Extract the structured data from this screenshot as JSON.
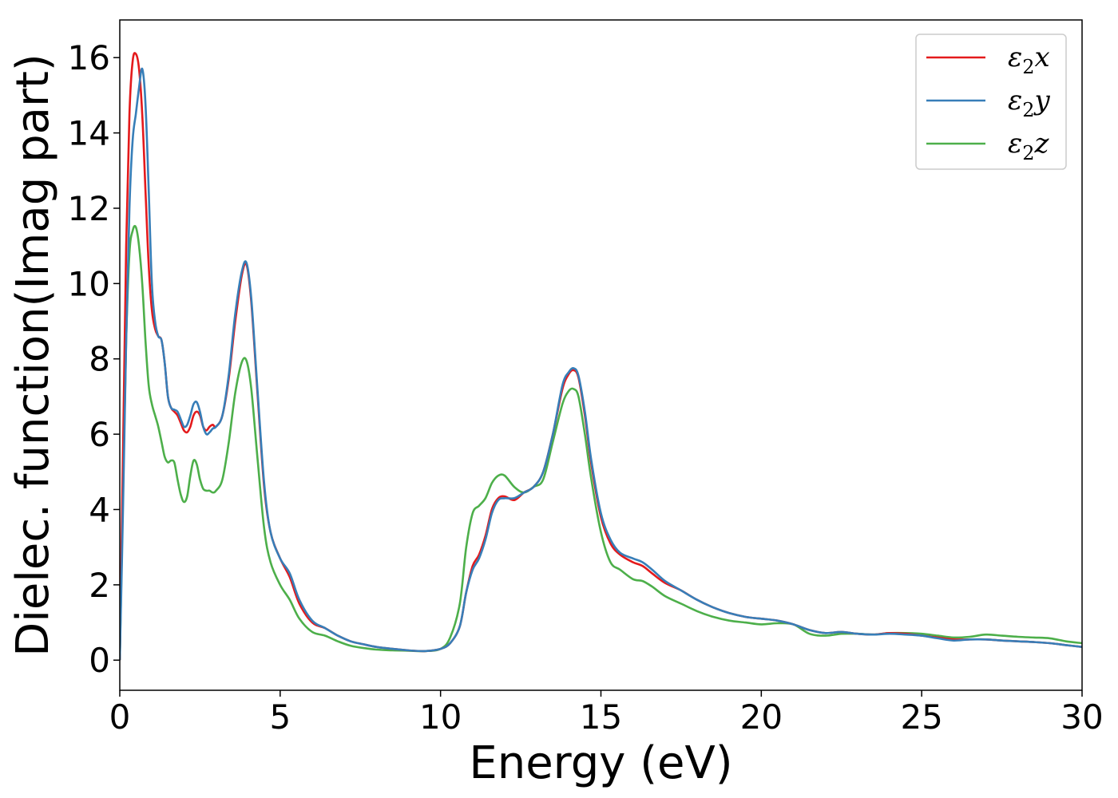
{
  "chart_data": {
    "type": "line",
    "title": "",
    "xlabel": "Energy (eV)",
    "ylabel": "Dielec. function(Imag part)",
    "xlim": [
      0,
      30
    ],
    "ylim": [
      -0.8,
      17
    ],
    "xticks": [
      0,
      5,
      10,
      15,
      20,
      25,
      30
    ],
    "yticks": [
      0,
      2,
      4,
      6,
      8,
      10,
      12,
      14,
      16
    ],
    "grid": false,
    "legend_position": "top-right",
    "series": [
      {
        "name": "ε2x",
        "legend_base": "ε",
        "legend_sub": "2",
        "legend_suffix": "x",
        "color": "#e41a1c",
        "x": [
          0,
          0.1,
          0.2,
          0.3,
          0.4,
          0.5,
          0.6,
          0.7,
          0.8,
          0.9,
          1.0,
          1.1,
          1.2,
          1.3,
          1.4,
          1.5,
          1.6,
          1.7,
          1.8,
          1.9,
          2.0,
          2.1,
          2.2,
          2.3,
          2.4,
          2.5,
          2.6,
          2.7,
          2.8,
          2.9,
          3.0,
          3.2,
          3.4,
          3.6,
          3.8,
          3.95,
          4.1,
          4.3,
          4.5,
          4.7,
          5.0,
          5.3,
          5.6,
          6.0,
          6.4,
          6.8,
          7.2,
          7.6,
          8.0,
          8.5,
          9.0,
          9.5,
          10.0,
          10.3,
          10.6,
          10.8,
          11.0,
          11.2,
          11.4,
          11.6,
          11.8,
          12.0,
          12.3,
          12.6,
          12.9,
          13.2,
          13.5,
          13.8,
          14.0,
          14.15,
          14.3,
          14.5,
          14.7,
          15.0,
          15.3,
          15.6,
          16.0,
          16.3,
          16.6,
          17.0,
          17.5,
          18.0,
          18.5,
          19.0,
          19.5,
          20.0,
          20.5,
          21.0,
          21.5,
          22.0,
          22.5,
          23.0,
          23.5,
          24.0,
          24.5,
          25.0,
          25.5,
          26.0,
          26.5,
          27.0,
          27.5,
          28.0,
          28.5,
          29.0,
          29.5,
          30.0
        ],
        "y": [
          0,
          5.5,
          11.0,
          14.5,
          15.9,
          16.1,
          15.7,
          14.5,
          12.5,
          10.5,
          9.3,
          8.8,
          8.6,
          8.5,
          7.9,
          7.0,
          6.7,
          6.6,
          6.5,
          6.3,
          6.1,
          6.05,
          6.2,
          6.5,
          6.6,
          6.5,
          6.2,
          6.1,
          6.2,
          6.25,
          6.2,
          6.5,
          7.5,
          9.0,
          10.2,
          10.5,
          9.5,
          7.0,
          4.6,
          3.4,
          2.7,
          2.2,
          1.5,
          1.0,
          0.85,
          0.65,
          0.5,
          0.42,
          0.35,
          0.3,
          0.26,
          0.24,
          0.3,
          0.45,
          0.9,
          1.8,
          2.5,
          2.8,
          3.3,
          4.0,
          4.3,
          4.35,
          4.25,
          4.45,
          4.6,
          5.0,
          6.0,
          7.2,
          7.6,
          7.7,
          7.5,
          6.5,
          5.2,
          3.8,
          3.1,
          2.8,
          2.6,
          2.5,
          2.3,
          2.05,
          1.85,
          1.6,
          1.4,
          1.25,
          1.15,
          1.1,
          1.05,
          0.95,
          0.8,
          0.72,
          0.75,
          0.7,
          0.68,
          0.72,
          0.7,
          0.65,
          0.6,
          0.55,
          0.55,
          0.55,
          0.52,
          0.5,
          0.48,
          0.45,
          0.4,
          0.35
        ]
      },
      {
        "name": "ε2y",
        "legend_base": "ε",
        "legend_sub": "2",
        "legend_suffix": "y",
        "color": "#377eb8",
        "x": [
          0,
          0.1,
          0.2,
          0.3,
          0.4,
          0.5,
          0.6,
          0.7,
          0.8,
          0.9,
          1.0,
          1.1,
          1.2,
          1.3,
          1.4,
          1.5,
          1.6,
          1.7,
          1.8,
          1.9,
          2.0,
          2.1,
          2.2,
          2.3,
          2.4,
          2.5,
          2.6,
          2.7,
          2.8,
          2.9,
          3.0,
          3.2,
          3.4,
          3.6,
          3.8,
          3.95,
          4.1,
          4.3,
          4.5,
          4.7,
          5.0,
          5.3,
          5.6,
          6.0,
          6.4,
          6.8,
          7.2,
          7.6,
          8.0,
          8.5,
          9.0,
          9.5,
          10.0,
          10.3,
          10.6,
          10.8,
          11.0,
          11.2,
          11.4,
          11.6,
          11.8,
          12.0,
          12.3,
          12.6,
          12.9,
          13.2,
          13.5,
          13.8,
          14.0,
          14.15,
          14.3,
          14.5,
          14.7,
          15.0,
          15.3,
          15.6,
          16.0,
          16.3,
          16.6,
          17.0,
          17.5,
          18.0,
          18.5,
          19.0,
          19.5,
          20.0,
          20.5,
          21.0,
          21.5,
          22.0,
          22.5,
          23.0,
          23.5,
          24.0,
          24.5,
          25.0,
          25.5,
          26.0,
          26.5,
          27.0,
          27.5,
          28.0,
          28.5,
          29.0,
          29.5,
          30.0
        ],
        "y": [
          0,
          4.0,
          8.5,
          12.0,
          13.8,
          14.5,
          15.2,
          15.7,
          14.8,
          12.5,
          10.0,
          9.0,
          8.6,
          8.5,
          7.9,
          7.0,
          6.7,
          6.65,
          6.6,
          6.4,
          6.2,
          6.25,
          6.5,
          6.8,
          6.85,
          6.6,
          6.2,
          6.0,
          6.05,
          6.15,
          6.2,
          6.5,
          7.6,
          9.2,
          10.3,
          10.55,
          9.6,
          7.1,
          4.7,
          3.4,
          2.7,
          2.3,
          1.6,
          1.05,
          0.85,
          0.65,
          0.5,
          0.42,
          0.35,
          0.3,
          0.26,
          0.24,
          0.3,
          0.45,
          0.9,
          1.8,
          2.4,
          2.7,
          3.2,
          3.9,
          4.25,
          4.3,
          4.3,
          4.45,
          4.6,
          5.0,
          6.0,
          7.3,
          7.65,
          7.75,
          7.55,
          6.6,
          5.3,
          3.9,
          3.2,
          2.85,
          2.7,
          2.6,
          2.4,
          2.1,
          1.85,
          1.6,
          1.4,
          1.25,
          1.15,
          1.1,
          1.05,
          0.95,
          0.8,
          0.72,
          0.75,
          0.7,
          0.68,
          0.7,
          0.68,
          0.65,
          0.58,
          0.52,
          0.55,
          0.55,
          0.52,
          0.5,
          0.48,
          0.45,
          0.4,
          0.35
        ]
      },
      {
        "name": "ε2z",
        "legend_base": "ε",
        "legend_sub": "2",
        "legend_suffix": "z",
        "color": "#4daf4a",
        "x": [
          0,
          0.1,
          0.2,
          0.3,
          0.4,
          0.5,
          0.6,
          0.7,
          0.8,
          0.9,
          1.0,
          1.1,
          1.2,
          1.3,
          1.4,
          1.5,
          1.6,
          1.7,
          1.8,
          1.9,
          2.0,
          2.1,
          2.2,
          2.3,
          2.4,
          2.5,
          2.6,
          2.7,
          2.8,
          2.9,
          3.0,
          3.2,
          3.4,
          3.6,
          3.8,
          3.95,
          4.1,
          4.3,
          4.5,
          4.7,
          5.0,
          5.3,
          5.6,
          6.0,
          6.4,
          6.8,
          7.2,
          7.6,
          8.0,
          8.5,
          9.0,
          9.5,
          10.0,
          10.3,
          10.6,
          10.8,
          11.0,
          11.2,
          11.4,
          11.6,
          11.8,
          12.0,
          12.3,
          12.6,
          12.9,
          13.2,
          13.5,
          13.8,
          14.0,
          14.15,
          14.3,
          14.5,
          14.7,
          15.0,
          15.3,
          15.6,
          16.0,
          16.3,
          16.6,
          17.0,
          17.5,
          18.0,
          18.5,
          19.0,
          19.5,
          20.0,
          20.5,
          21.0,
          21.5,
          22.0,
          22.5,
          23.0,
          23.5,
          24.0,
          24.5,
          25.0,
          25.5,
          26.0,
          26.5,
          27.0,
          27.5,
          28.0,
          28.5,
          29.0,
          29.5,
          30.0
        ],
        "y": [
          0,
          4.5,
          8.5,
          10.8,
          11.4,
          11.5,
          11.0,
          10.0,
          8.5,
          7.3,
          6.8,
          6.5,
          6.2,
          5.8,
          5.4,
          5.25,
          5.3,
          5.25,
          4.8,
          4.4,
          4.2,
          4.35,
          4.9,
          5.3,
          5.2,
          4.8,
          4.55,
          4.5,
          4.5,
          4.45,
          4.5,
          4.8,
          5.8,
          7.1,
          7.9,
          7.95,
          7.2,
          5.3,
          3.5,
          2.6,
          2.0,
          1.6,
          1.1,
          0.75,
          0.65,
          0.5,
          0.38,
          0.32,
          0.28,
          0.26,
          0.25,
          0.24,
          0.3,
          0.6,
          1.5,
          3.0,
          3.9,
          4.1,
          4.3,
          4.7,
          4.9,
          4.9,
          4.6,
          4.45,
          4.6,
          4.8,
          5.8,
          6.8,
          7.15,
          7.2,
          7.0,
          6.0,
          4.8,
          3.4,
          2.6,
          2.4,
          2.15,
          2.1,
          1.95,
          1.7,
          1.5,
          1.3,
          1.15,
          1.05,
          1.0,
          0.95,
          0.98,
          0.95,
          0.7,
          0.65,
          0.7,
          0.7,
          0.68,
          0.72,
          0.72,
          0.7,
          0.65,
          0.6,
          0.62,
          0.68,
          0.65,
          0.62,
          0.6,
          0.58,
          0.5,
          0.45
        ]
      }
    ]
  }
}
